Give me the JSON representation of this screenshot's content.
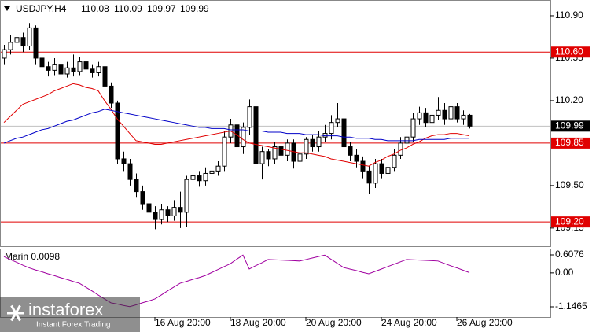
{
  "chart_data": {
    "type": "candlestick",
    "symbol": "USDJPY,H4",
    "x": [
      null,
      null,
      null,
      null,
      null,
      null,
      null,
      null,
      null,
      null,
      null,
      null,
      null,
      null,
      null,
      null,
      null,
      null,
      null,
      null,
      null,
      null,
      null,
      null,
      "16 Aug 20:00",
      null,
      null,
      null,
      null,
      null,
      null,
      null,
      null,
      null,
      null,
      null,
      "18 Aug 20:00",
      null,
      null,
      null,
      null,
      null,
      null,
      null,
      null,
      null,
      null,
      null,
      "20 Aug 20:00",
      null,
      null,
      null,
      null,
      null,
      null,
      null,
      null,
      null,
      null,
      null,
      "24 Aug 20:00",
      null,
      null,
      null,
      null,
      null,
      null,
      null,
      null,
      null,
      null,
      null,
      "26 Aug 20:00",
      null,
      null
    ],
    "open": [
      110.55,
      110.62,
      110.68,
      110.72,
      110.65,
      110.8,
      110.55,
      110.48,
      110.45,
      110.5,
      110.42,
      110.47,
      110.44,
      110.52,
      110.46,
      110.43,
      110.48,
      110.32,
      110.18,
      109.72,
      109.68,
      109.55,
      109.45,
      109.35,
      109.28,
      109.22,
      109.3,
      109.25,
      109.32,
      109.28,
      109.55,
      109.58,
      109.54,
      109.6,
      109.62,
      109.66,
      109.9,
      110.0,
      109.82,
      109.98,
      110.15,
      109.68,
      109.78,
      109.72,
      109.82,
      109.75,
      109.85,
      109.7,
      109.76,
      109.88,
      109.82,
      109.9,
      109.93,
      110.02,
      110.05,
      109.82,
      109.75,
      109.7,
      109.62,
      109.52,
      109.68,
      109.6,
      109.65,
      109.75,
      109.85,
      109.9,
      110.05,
      110.1,
      110.02,
      110.08,
      110.12,
      110.05,
      110.15,
      110.05,
      110.08
    ],
    "high": [
      110.66,
      110.74,
      110.78,
      110.76,
      110.84,
      110.82,
      110.6,
      110.52,
      110.55,
      110.54,
      110.52,
      110.58,
      110.56,
      110.55,
      110.5,
      110.52,
      110.5,
      110.35,
      110.2,
      109.78,
      109.72,
      109.6,
      109.5,
      109.4,
      109.33,
      109.35,
      109.33,
      109.38,
      109.45,
      109.58,
      109.63,
      109.62,
      109.65,
      109.68,
      109.7,
      109.95,
      110.05,
      110.03,
      110.02,
      110.21,
      110.18,
      109.82,
      109.8,
      109.86,
      109.85,
      109.88,
      109.88,
      109.82,
      109.9,
      109.92,
      109.95,
      110.0,
      110.08,
      110.18,
      110.08,
      109.86,
      109.8,
      109.74,
      109.66,
      109.72,
      109.72,
      109.7,
      109.8,
      109.9,
      109.95,
      110.1,
      110.15,
      110.14,
      110.12,
      110.23,
      110.18,
      110.22,
      110.18,
      110.12,
      110.09
    ],
    "low": [
      110.5,
      110.58,
      110.63,
      110.6,
      110.62,
      110.5,
      110.42,
      110.4,
      110.41,
      110.38,
      110.39,
      110.4,
      110.41,
      110.42,
      110.39,
      110.4,
      110.28,
      110.14,
      109.68,
      109.62,
      109.5,
      109.4,
      109.3,
      109.24,
      109.14,
      109.18,
      109.2,
      109.21,
      109.15,
      109.16,
      109.5,
      109.49,
      109.5,
      109.55,
      109.58,
      109.62,
      109.85,
      109.78,
      109.76,
      109.92,
      109.55,
      109.55,
      109.66,
      109.68,
      109.7,
      109.7,
      109.64,
      109.65,
      109.72,
      109.78,
      109.78,
      109.86,
      109.88,
      109.98,
      109.78,
      109.7,
      109.65,
      109.56,
      109.43,
      109.48,
      109.56,
      109.57,
      109.62,
      109.72,
      109.82,
      109.86,
      110.0,
      109.98,
      109.98,
      110.04,
      110.0,
      110.02,
      110.02,
      110.0,
      109.97
    ],
    "close": [
      110.62,
      110.68,
      110.72,
      110.65,
      110.8,
      110.55,
      110.48,
      110.45,
      110.5,
      110.42,
      110.47,
      110.44,
      110.52,
      110.46,
      110.43,
      110.48,
      110.32,
      110.18,
      109.72,
      109.68,
      109.55,
      109.45,
      109.35,
      109.28,
      109.22,
      109.3,
      109.25,
      109.32,
      109.28,
      109.55,
      109.58,
      109.54,
      109.6,
      109.62,
      109.66,
      109.9,
      110.0,
      109.82,
      109.98,
      110.15,
      109.68,
      109.78,
      109.72,
      109.82,
      109.75,
      109.85,
      109.7,
      109.76,
      109.88,
      109.82,
      109.9,
      109.93,
      110.02,
      110.05,
      109.82,
      109.75,
      109.7,
      109.62,
      109.52,
      109.68,
      109.6,
      109.65,
      109.75,
      109.85,
      109.9,
      110.05,
      110.1,
      110.02,
      110.08,
      110.12,
      110.05,
      110.15,
      110.05,
      110.08,
      109.99
    ],
    "lines": [
      {
        "color": "#e00000",
        "values": [
          110.02,
          110.07,
          110.12,
          110.17,
          110.19,
          110.21,
          110.23,
          110.25,
          110.28,
          110.3,
          110.32,
          110.34,
          110.33,
          110.31,
          110.3,
          110.28,
          110.2,
          110.13,
          110.05,
          109.99,
          109.93,
          109.87,
          109.86,
          109.85,
          109.84,
          109.84,
          109.85,
          109.86,
          109.87,
          109.88,
          109.89,
          109.9,
          109.91,
          109.92,
          109.93,
          109.94,
          109.95,
          109.92,
          109.88,
          109.85,
          109.84,
          109.83,
          109.82,
          109.81,
          109.8,
          109.79,
          109.78,
          109.77,
          109.77,
          109.76,
          109.75,
          109.74,
          109.72,
          109.71,
          109.7,
          109.69,
          109.68,
          109.67,
          109.66,
          109.69,
          109.71,
          109.74,
          109.76,
          109.79,
          109.81,
          109.84,
          109.86,
          109.89,
          109.91,
          109.92,
          109.92,
          109.93,
          109.93,
          109.92,
          109.91
        ]
      },
      {
        "color": "#0000c8",
        "values": [
          109.85,
          109.87,
          109.89,
          109.9,
          109.92,
          109.94,
          109.96,
          109.97,
          109.99,
          110.01,
          110.03,
          110.04,
          110.06,
          110.08,
          110.1,
          110.11,
          110.13,
          110.12,
          110.11,
          110.1,
          110.09,
          110.08,
          110.07,
          110.06,
          110.05,
          110.04,
          110.03,
          110.02,
          110.01,
          110.0,
          109.99,
          109.98,
          109.98,
          109.97,
          109.97,
          109.97,
          109.96,
          109.96,
          109.96,
          109.95,
          109.95,
          109.95,
          109.94,
          109.94,
          109.94,
          109.93,
          109.93,
          109.93,
          109.92,
          109.92,
          109.92,
          109.91,
          109.91,
          109.91,
          109.9,
          109.9,
          109.89,
          109.89,
          109.89,
          109.88,
          109.88,
          109.87,
          109.87,
          109.87,
          109.87,
          109.87,
          109.88,
          109.88,
          109.88,
          109.88,
          109.88,
          109.89,
          109.89,
          109.89,
          109.89
        ]
      }
    ],
    "levels": [
      {
        "value": 110.6,
        "label": "110.60"
      },
      109.85,
      {
        "value": 109.2,
        "label": "109.20"
      }
    ],
    "level_color": "#e00000",
    "ylim": [
      109.0,
      111.01
    ],
    "yticks": [
      {
        "value": 110.9,
        "label": "110.90"
      },
      110.55,
      {
        "value": 110.2,
        "label": "110.20"
      },
      {
        "value": 109.5,
        "label": "109.50"
      },
      109.15
    ],
    "indicator": {
      "name": "Marin 0.0098",
      "color": "#a000a0",
      "ylim": [
        -1.1465,
        0.6076
      ],
      "yticks": [
        0.6076,
        {
          "value": 0,
          "label": "0.00"
        },
        -1.1465
      ],
      "values": [
        0.55,
        0.45,
        0.36,
        0.26,
        0.17,
        0.1,
        0.04,
        -0.03,
        -0.09,
        -0.16,
        -0.22,
        -0.29,
        -0.35,
        -0.48,
        -0.61,
        -0.75,
        -0.88,
        -1.01,
        -1.05,
        -1.1,
        -1.14,
        -1.08,
        -1.01,
        -0.95,
        -0.88,
        -0.75,
        -0.61,
        -0.48,
        -0.35,
        -0.29,
        -0.22,
        -0.16,
        -0.09,
        0.01,
        0.11,
        0.21,
        0.31,
        0.46,
        0.6,
        0.13,
        0.24,
        0.34,
        0.45,
        0.44,
        0.43,
        0.42,
        0.41,
        0.4,
        0.45,
        0.5,
        0.55,
        0.6,
        0.46,
        0.32,
        0.18,
        0.13,
        0.08,
        0.02,
        -0.03,
        0.05,
        0.13,
        0.21,
        0.29,
        0.37,
        0.45,
        0.44,
        0.43,
        0.42,
        0.41,
        0.4,
        0.32,
        0.24,
        0.17,
        0.09,
        0.01
      ]
    },
    "watermark": {
      "brand": "instaforex",
      "tagline": "Instant Forex Trading"
    }
  }
}
